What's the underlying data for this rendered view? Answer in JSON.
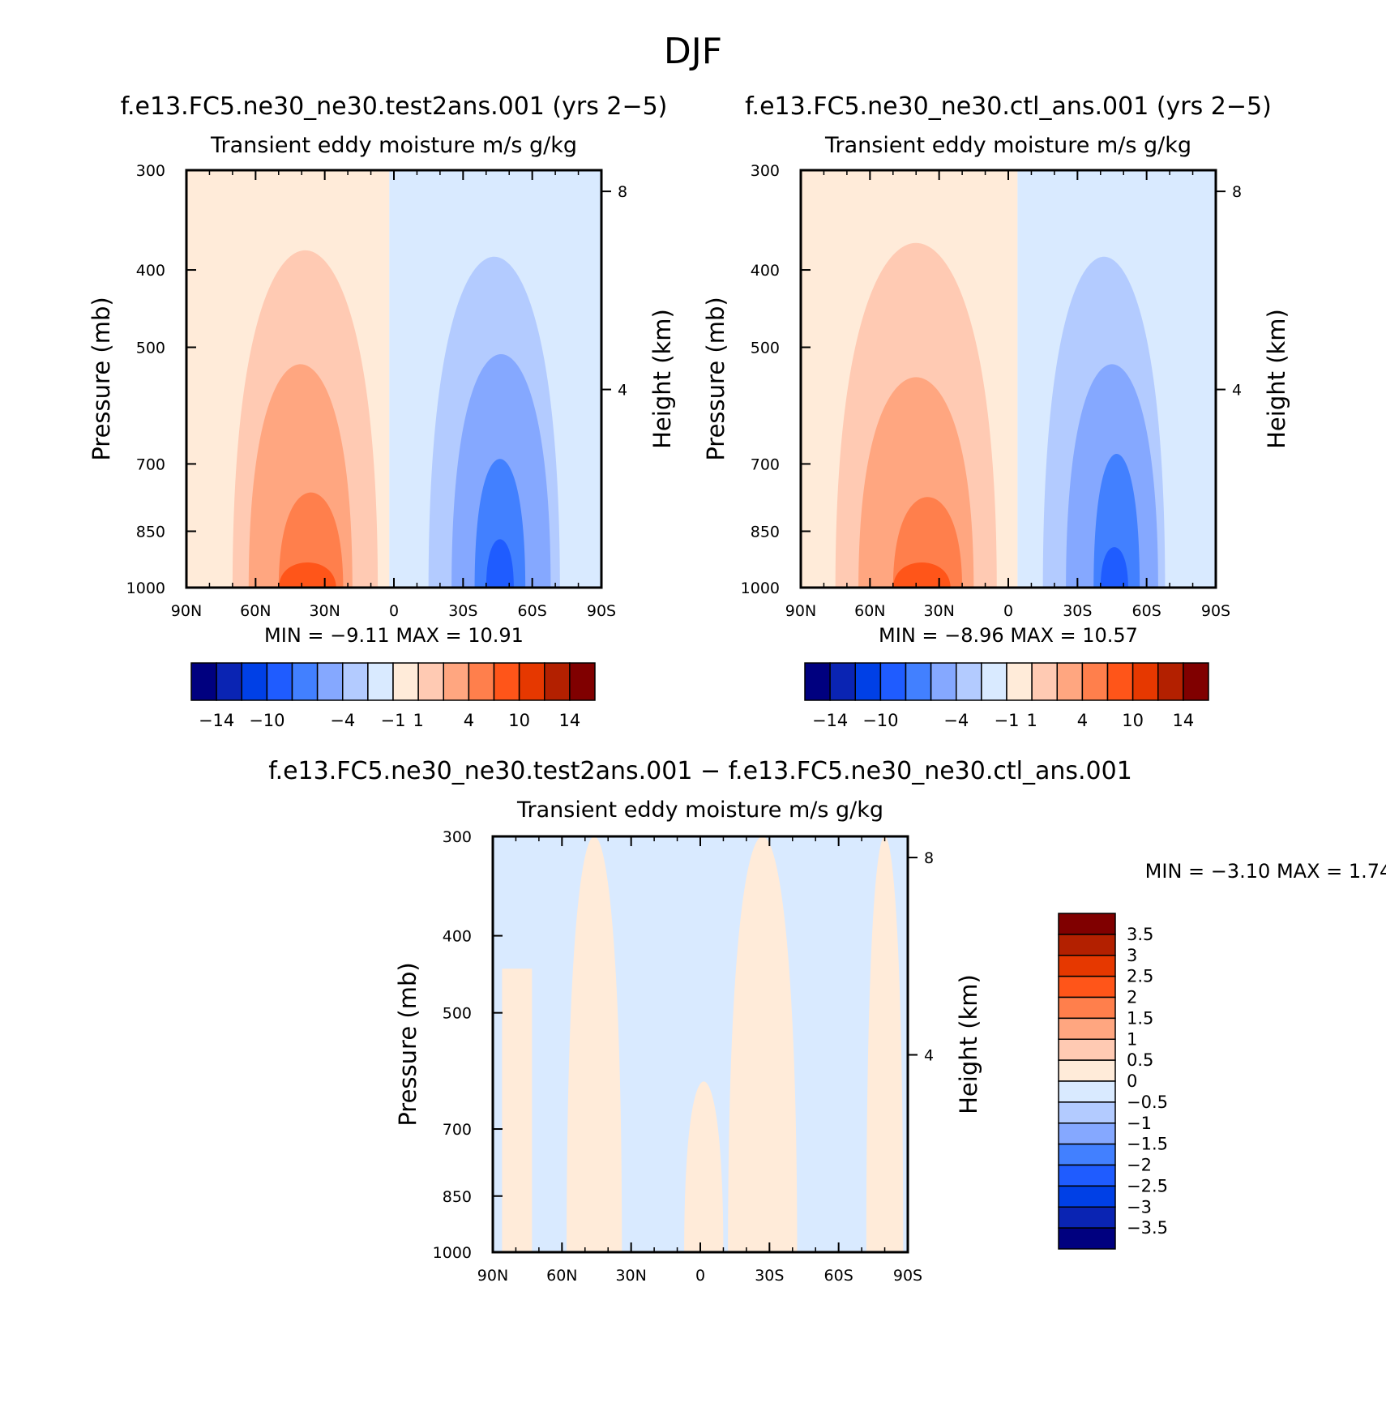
{
  "figure": {
    "title": "DJF"
  },
  "colors": {
    "abs_palette": [
      "#00007f",
      "#0a24b3",
      "#0040e6",
      "#1f5cff",
      "#4280ff",
      "#85a8ff",
      "#b3cbff",
      "#d9eaff",
      "#ffebd9",
      "#ffcab3",
      "#ffa680",
      "#ff7f4c",
      "#ff5519",
      "#e63800",
      "#b32000",
      "#800000"
    ],
    "diff_palette": [
      "#00007f",
      "#0a24b3",
      "#0040e6",
      "#1f5cff",
      "#4280ff",
      "#85a8ff",
      "#b3cbff",
      "#d9eaff",
      "#ffebd9",
      "#ffcab3",
      "#ffa680",
      "#ff7f4c",
      "#ff5519",
      "#e63800",
      "#b32000",
      "#800000"
    ]
  },
  "chart_data": [
    {
      "type": "contour",
      "title": "f.e13.FC5.ne30_ne30.test2ans.001 (yrs 2−5)",
      "subtitle": "Transient  eddy  moisture m/s  g/kg",
      "ylabel": "Pressure  (mb)",
      "ylabel_right": "Height  (km)",
      "x_ticks": [
        "90N",
        "60N",
        "30N",
        "0",
        "30S",
        "60S",
        "90S"
      ],
      "xlim": [
        90,
        -90
      ],
      "y_ticks": [
        300,
        400,
        500,
        700,
        850,
        1000
      ],
      "ylim": [
        1000,
        300
      ],
      "y_scale": "log",
      "right_ticks": [
        4,
        8
      ],
      "min_text": "MIN =    −9.11    MAX =    10.91",
      "colorbar_labels": [
        "−14",
        "−10",
        "−4",
        "−1",
        "1",
        "4",
        "10",
        "14"
      ],
      "features": [
        {
          "polarity": "pos",
          "level": 1,
          "lat": [
            90,
            2
          ],
          "p": [
            1000,
            300
          ]
        },
        {
          "polarity": "neg",
          "level": 1,
          "lat": [
            2,
            -90
          ],
          "p": [
            1000,
            300
          ]
        },
        {
          "polarity": "pos",
          "level": 2,
          "lat": [
            70,
            7
          ],
          "p": [
            1000,
            378
          ]
        },
        {
          "polarity": "pos",
          "level": 3,
          "lat": [
            63,
            18
          ],
          "p": [
            1000,
            525
          ]
        },
        {
          "polarity": "pos",
          "level": 4,
          "lat": [
            50,
            22
          ],
          "p": [
            1000,
            760
          ]
        },
        {
          "polarity": "pos",
          "level": 5,
          "lat": [
            50,
            25
          ],
          "p": [
            1000,
            930
          ]
        },
        {
          "polarity": "neg",
          "level": 2,
          "lat": [
            -15,
            -72
          ],
          "p": [
            1000,
            385
          ]
        },
        {
          "polarity": "neg",
          "level": 3,
          "lat": [
            -25,
            -68
          ],
          "p": [
            1000,
            510
          ]
        },
        {
          "polarity": "neg",
          "level": 4,
          "lat": [
            -35,
            -57
          ],
          "p": [
            1000,
            690
          ]
        },
        {
          "polarity": "neg",
          "level": 5,
          "lat": [
            -40,
            -52
          ],
          "p": [
            1000,
            870
          ]
        }
      ]
    },
    {
      "type": "contour",
      "title": "f.e13.FC5.ne30_ne30.ctl_ans.001 (yrs 2−5)",
      "subtitle": "Transient  eddy  moisture m/s  g/kg",
      "ylabel": "Pressure  (mb)",
      "ylabel_right": "Height  (km)",
      "x_ticks": [
        "90N",
        "60N",
        "30N",
        "0",
        "30S",
        "60S",
        "90S"
      ],
      "xlim": [
        90,
        -90
      ],
      "y_ticks": [
        300,
        400,
        500,
        700,
        850,
        1000
      ],
      "ylim": [
        1000,
        300
      ],
      "y_scale": "log",
      "right_ticks": [
        4,
        8
      ],
      "min_text": "MIN =    −8.96    MAX =    10.57",
      "colorbar_labels": [
        "−14",
        "−10",
        "−4",
        "−1",
        "1",
        "4",
        "10",
        "14"
      ],
      "features": [
        {
          "polarity": "pos",
          "level": 1,
          "lat": [
            90,
            -4
          ],
          "p": [
            1000,
            300
          ]
        },
        {
          "polarity": "neg",
          "level": 1,
          "lat": [
            -4,
            -90
          ],
          "p": [
            1000,
            300
          ]
        },
        {
          "polarity": "pos",
          "level": 2,
          "lat": [
            75,
            5
          ],
          "p": [
            1000,
            370
          ]
        },
        {
          "polarity": "pos",
          "level": 3,
          "lat": [
            65,
            15
          ],
          "p": [
            1000,
            545
          ]
        },
        {
          "polarity": "pos",
          "level": 4,
          "lat": [
            50,
            20
          ],
          "p": [
            1000,
            770
          ]
        },
        {
          "polarity": "pos",
          "level": 5,
          "lat": [
            50,
            25
          ],
          "p": [
            1000,
            930
          ]
        },
        {
          "polarity": "neg",
          "level": 2,
          "lat": [
            -15,
            -68
          ],
          "p": [
            1000,
            385
          ]
        },
        {
          "polarity": "neg",
          "level": 3,
          "lat": [
            -25,
            -65
          ],
          "p": [
            1000,
            525
          ]
        },
        {
          "polarity": "neg",
          "level": 4,
          "lat": [
            -37,
            -57
          ],
          "p": [
            1000,
            680
          ]
        },
        {
          "polarity": "neg",
          "level": 5,
          "lat": [
            -40,
            -52
          ],
          "p": [
            1000,
            890
          ]
        }
      ]
    },
    {
      "type": "contour",
      "title": "f.e13.FC5.ne30_ne30.test2ans.001  −  f.e13.FC5.ne30_ne30.ctl_ans.001",
      "subtitle": "Transient  eddy  moisture m/s  g/kg",
      "ylabel": "Pressure  (mb)",
      "ylabel_right": "Height  (km)",
      "x_ticks": [
        "90N",
        "60N",
        "30N",
        "0",
        "30S",
        "60S",
        "90S"
      ],
      "xlim": [
        90,
        -90
      ],
      "y_ticks": [
        300,
        400,
        500,
        700,
        850,
        1000
      ],
      "ylim": [
        1000,
        300
      ],
      "y_scale": "log",
      "right_ticks": [
        4,
        8
      ],
      "min_text": "MIN =    −3.10    MAX =     1.74",
      "colorbar_labels": [
        "3.5",
        "3",
        "2.5",
        "2",
        "1.5",
        "1",
        "0.5",
        "0",
        "−0.5",
        "−1",
        "−1.5",
        "−2",
        "−2.5",
        "−3",
        "−3.5"
      ],
      "features": [
        {
          "polarity": "neg",
          "level": 1,
          "lat": [
            90,
            -90
          ],
          "p": [
            1000,
            300
          ]
        },
        {
          "polarity": "pos",
          "level": 1,
          "lat": [
            86,
            73
          ],
          "p": [
            1000,
            440
          ]
        },
        {
          "polarity": "pos",
          "level": 1,
          "lat": [
            58,
            34
          ],
          "p": [
            1000,
            300
          ]
        },
        {
          "polarity": "pos",
          "level": 1,
          "lat": [
            7,
            -10
          ],
          "p": [
            1000,
            610
          ]
        },
        {
          "polarity": "pos",
          "level": 1,
          "lat": [
            -12,
            -42
          ],
          "p": [
            1000,
            300
          ]
        },
        {
          "polarity": "pos",
          "level": 1,
          "lat": [
            -72,
            -88
          ],
          "p": [
            1000,
            300
          ]
        }
      ]
    }
  ]
}
